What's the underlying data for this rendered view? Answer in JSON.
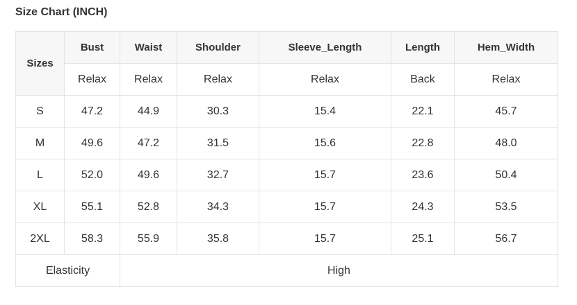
{
  "title": "Size Chart (INCH)",
  "headers": [
    "Sizes",
    "Bust",
    "Waist",
    "Shoulder",
    "Sleeve_Length",
    "Length",
    "Hem_Width"
  ],
  "subheaders": [
    "Relax",
    "Relax",
    "Relax",
    "Relax",
    "Back",
    "Relax"
  ],
  "rows": [
    [
      "S",
      "47.2",
      "44.9",
      "30.3",
      "15.4",
      "22.1",
      "45.7"
    ],
    [
      "M",
      "49.6",
      "47.2",
      "31.5",
      "15.6",
      "22.8",
      "48.0"
    ],
    [
      "L",
      "52.0",
      "49.6",
      "32.7",
      "15.7",
      "23.6",
      "50.4"
    ],
    [
      "XL",
      "55.1",
      "52.8",
      "34.3",
      "15.7",
      "24.3",
      "53.5"
    ],
    [
      "2XL",
      "58.3",
      "55.9",
      "35.8",
      "15.7",
      "25.1",
      "56.7"
    ]
  ],
  "footer": {
    "label": "Elasticity",
    "value": "High"
  }
}
